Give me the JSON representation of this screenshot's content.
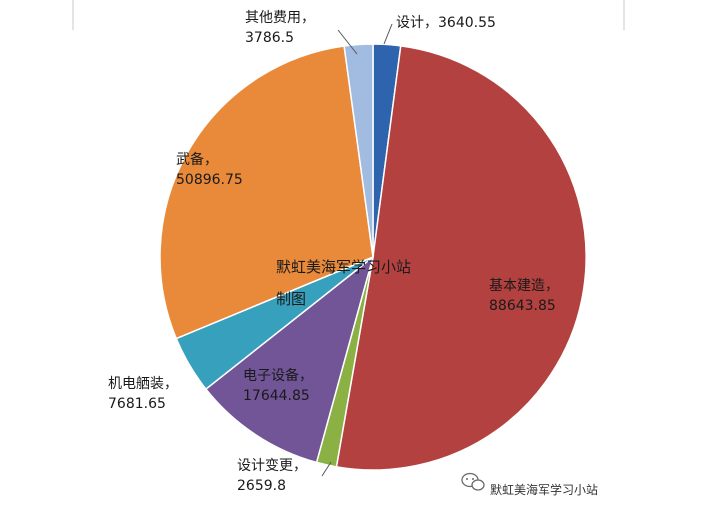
{
  "chart_data": {
    "type": "pie",
    "title": "",
    "start_angle_deg": 0,
    "direction": "clockwise",
    "slices": [
      {
        "category": "设计",
        "value": 3640.55,
        "value_label": "3640.55",
        "color": "#2e63ad"
      },
      {
        "category": "基本建造",
        "value": 88643.85,
        "value_label": "88643.85",
        "color": "#b2413f"
      },
      {
        "category": "设计变更",
        "value": 2659.8,
        "value_label": "2659.8",
        "color": "#8bb145"
      },
      {
        "category": "电子设备",
        "value": 17644.85,
        "value_label": "17644.85",
        "color": "#725597"
      },
      {
        "category": "机电舾装",
        "value": 7681.65,
        "value_label": "7681.65",
        "color": "#37a0bd"
      },
      {
        "category": "武备",
        "value": 50896.75,
        "value_label": "50896.75",
        "color": "#e88a3a"
      },
      {
        "category": "其他费用",
        "value": 3786.5,
        "value_label": "3786.5",
        "color": "#a2bbe0"
      }
    ],
    "labels": [
      {
        "lines": [
          "设计，3640.55"
        ]
      },
      {
        "lines": [
          "基本建造，",
          "88643.85"
        ]
      },
      {
        "lines": [
          "设计变更，",
          "2659.8"
        ]
      },
      {
        "lines": [
          "电子设备，",
          "17644.85"
        ]
      },
      {
        "lines": [
          "机电舾装，",
          "7681.65"
        ]
      },
      {
        "lines": [
          "武备，",
          "50896.75"
        ]
      },
      {
        "lines": [
          "其他费用，",
          "3786.5"
        ]
      }
    ]
  },
  "overlay_text": {
    "line1": "默虹美海军学习小站",
    "line2": "制图"
  },
  "watermark": {
    "icon": "wechat-icon",
    "text": "默虹美海军学习小站"
  }
}
